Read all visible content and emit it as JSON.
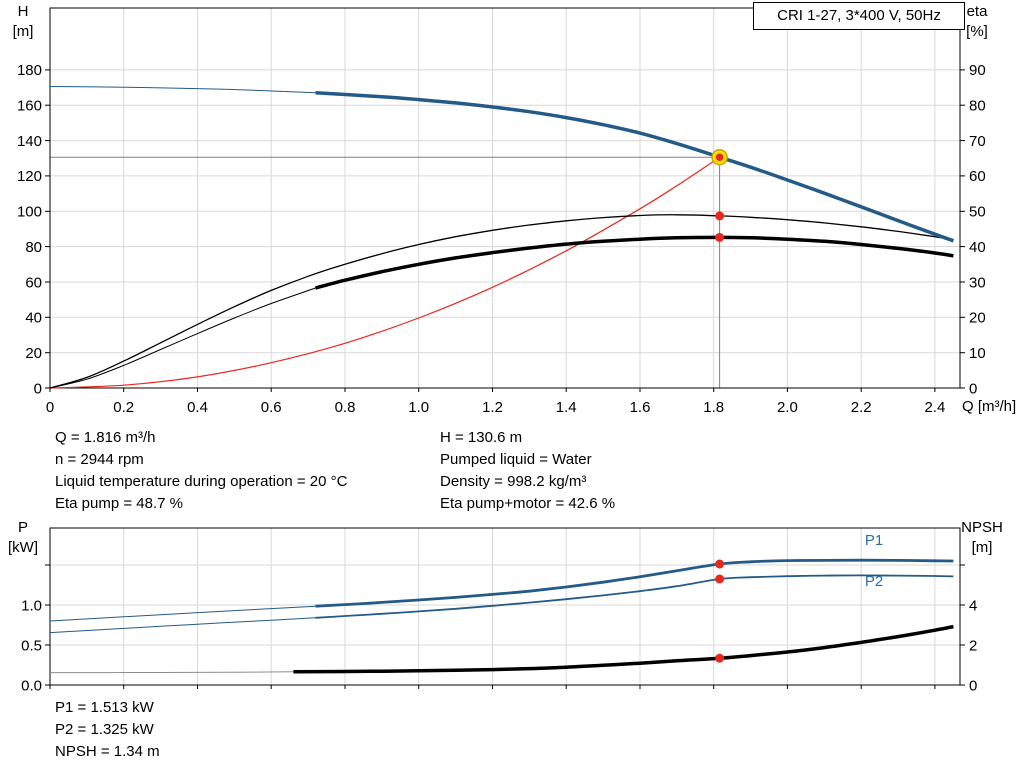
{
  "title_box": {
    "label": "CRI 1-27, 3*400 V, 50Hz"
  },
  "axis_corner_labels": {
    "top_left": [
      "H",
      "[m]"
    ],
    "top_right": [
      "eta",
      "[%]"
    ],
    "x_axis": "Q [m³/h]",
    "bottom_left": [
      "P",
      "[kW]"
    ],
    "bottom_right": [
      "NPSH",
      "[m]"
    ]
  },
  "info": {
    "top_left": [
      "Q = 1.816 m³/h",
      "n = 2944 rpm",
      "Liquid temperature during operation = 20 °C",
      "Eta pump = 48.7 %"
    ],
    "top_right": [
      "H = 130.6 m",
      "Pumped liquid = Water",
      "Density = 998.2 kg/m³",
      "Eta pump+motor = 42.6 %"
    ],
    "bottom": [
      "P1 = 1.513 kW",
      "P2 = 1.325 kW",
      "NPSH = 1.34 m"
    ]
  },
  "colors": {
    "curve_blue": "#245a87",
    "label_blue": "#2e6da4",
    "red": "#e8281e",
    "black": "#000000",
    "grid": "#d8d8d8",
    "crosshair": "#808080",
    "yellow": "#ffe100",
    "yellow_edge": "#c8a400",
    "npsh_thin_gray": "#8c8c8c",
    "axis": "#000000"
  },
  "chart_data": [
    {
      "id": "qh-eta-curve",
      "type": "line",
      "title": "CRI 1-27, 3*400 V, 50Hz",
      "x": {
        "label": "Q [m³/h]",
        "min": 0,
        "max": 2.468,
        "ticks": [
          0,
          0.2,
          0.4,
          0.6,
          0.8,
          1,
          1.2,
          1.4,
          1.6,
          1.8,
          2,
          2.2,
          2.4
        ],
        "tick_labels": [
          "0",
          "0.2",
          "0.4",
          "0.6",
          "0.8",
          "1.0",
          "1.2",
          "1.4",
          "1.6",
          "1.8",
          "2.0",
          "2.2",
          "2.4"
        ]
      },
      "y_left": {
        "label": "H [m]",
        "min": 0,
        "max": 215,
        "ticks": [
          0,
          20,
          40,
          60,
          80,
          100,
          120,
          140,
          160,
          180
        ],
        "tick_labels": [
          "0",
          "20",
          "40",
          "60",
          "80",
          "100",
          "120",
          "140",
          "160",
          "180"
        ]
      },
      "y_right": {
        "label": "eta [%]",
        "min": 0,
        "max": 107.5,
        "ticks": [
          0,
          10,
          20,
          30,
          40,
          50,
          60,
          70,
          80,
          90
        ],
        "tick_labels": [
          "0",
          "10",
          "20",
          "30",
          "40",
          "50",
          "60",
          "70",
          "80",
          "90"
        ]
      },
      "operating_point": {
        "Q": 1.816,
        "H": 130.6,
        "eta_pump": 48.7,
        "eta_pump_motor": 42.6
      },
      "crosshair": {
        "x": 1.816,
        "y": 130.6,
        "axis": "left"
      },
      "series": [
        {
          "name": "system-curve",
          "axis": "left",
          "color": "#e8281e",
          "width": 1.2,
          "points": [
            [
              0,
              0
            ],
            [
              0.2,
              1.6
            ],
            [
              0.4,
              6.3
            ],
            [
              0.6,
              14.3
            ],
            [
              0.8,
              25.3
            ],
            [
              1,
              39.6
            ],
            [
              1.2,
              57
            ],
            [
              1.4,
              77.6
            ],
            [
              1.6,
              101.4
            ],
            [
              1.7,
              114.4
            ],
            [
              1.816,
              130.6
            ]
          ]
        },
        {
          "name": "eta-pump-motor-curve-thin",
          "axis": "right",
          "color": "#000000",
          "width": 1,
          "points": [
            [
              0,
              0
            ],
            [
              0.1,
              2.5
            ],
            [
              0.2,
              6.4
            ],
            [
              0.3,
              10.9
            ],
            [
              0.4,
              15.4
            ],
            [
              0.5,
              19.8
            ],
            [
              0.6,
              23.9
            ],
            [
              0.72,
              28.3
            ]
          ]
        },
        {
          "name": "eta-pump-curve",
          "axis": "right",
          "color": "#000000",
          "width": 1.3,
          "points": [
            [
              0,
              0
            ],
            [
              0.1,
              3
            ],
            [
              0.2,
              7.6
            ],
            [
              0.3,
              12.8
            ],
            [
              0.4,
              18
            ],
            [
              0.5,
              23
            ],
            [
              0.6,
              27.6
            ],
            [
              0.7,
              31.6
            ],
            [
              0.8,
              35
            ],
            [
              0.9,
              38
            ],
            [
              1,
              40.6
            ],
            [
              1.1,
              42.8
            ],
            [
              1.2,
              44.6
            ],
            [
              1.3,
              46.1
            ],
            [
              1.4,
              47.3
            ],
            [
              1.5,
              48.2
            ],
            [
              1.6,
              48.8
            ],
            [
              1.7,
              49
            ],
            [
              1.816,
              48.7
            ],
            [
              1.9,
              48.3
            ],
            [
              2,
              47.6
            ],
            [
              2.1,
              46.7
            ],
            [
              2.2,
              45.6
            ],
            [
              2.3,
              44.3
            ],
            [
              2.4,
              42.8
            ],
            [
              2.45,
              42
            ]
          ]
        },
        {
          "name": "eta-pump-motor-curve",
          "axis": "right",
          "color": "#000000",
          "width": 3.5,
          "points": [
            [
              0.72,
              28.3
            ],
            [
              0.8,
              30.5
            ],
            [
              0.9,
              32.9
            ],
            [
              1,
              35
            ],
            [
              1.1,
              36.8
            ],
            [
              1.2,
              38.3
            ],
            [
              1.3,
              39.6
            ],
            [
              1.4,
              40.7
            ],
            [
              1.5,
              41.5
            ],
            [
              1.6,
              42.1
            ],
            [
              1.7,
              42.5
            ],
            [
              1.816,
              42.6
            ],
            [
              1.9,
              42.5
            ],
            [
              2,
              42.1
            ],
            [
              2.1,
              41.5
            ],
            [
              2.2,
              40.6
            ],
            [
              2.3,
              39.5
            ],
            [
              2.4,
              38.2
            ],
            [
              2.45,
              37.4
            ]
          ]
        },
        {
          "name": "pump-curve-thin",
          "axis": "left",
          "color": "#245a87",
          "width": 1,
          "points": [
            [
              0,
              170.6
            ],
            [
              0.2,
              170.2
            ],
            [
              0.4,
              169.4
            ],
            [
              0.55,
              168.5
            ],
            [
              0.72,
              167
            ]
          ]
        },
        {
          "name": "pump-curve",
          "axis": "left",
          "color": "#245a87",
          "width": 3.5,
          "points": [
            [
              0.72,
              167
            ],
            [
              0.9,
              164.8
            ],
            [
              1,
              163.2
            ],
            [
              1.1,
              161.3
            ],
            [
              1.2,
              159
            ],
            [
              1.3,
              156.3
            ],
            [
              1.4,
              153
            ],
            [
              1.5,
              149
            ],
            [
              1.6,
              144.2
            ],
            [
              1.7,
              138.3
            ],
            [
              1.816,
              130.6
            ],
            [
              1.9,
              124.9
            ],
            [
              2,
              117.7
            ],
            [
              2.1,
              110.2
            ],
            [
              2.2,
              102.5
            ],
            [
              2.3,
              94.7
            ],
            [
              2.4,
              87
            ],
            [
              2.45,
              83.3
            ]
          ]
        }
      ],
      "markers": [
        {
          "name": "eta-pump-point",
          "type": "dot",
          "x": 1.816,
          "y": 48.7,
          "axis": "right"
        },
        {
          "name": "eta-pump-motor-point",
          "type": "dot",
          "x": 1.816,
          "y": 42.6,
          "axis": "right"
        },
        {
          "name": "duty-point-marker",
          "type": "duty-point",
          "x": 1.816,
          "y": 130.6,
          "axis": "left"
        }
      ]
    },
    {
      "id": "power-npsh-curve",
      "type": "line",
      "title": "",
      "x": {
        "label": "",
        "min": 0,
        "max": 2.468,
        "ticks": [
          0,
          0.2,
          0.4,
          0.6,
          0.8,
          1,
          1.2,
          1.4,
          1.6,
          1.8,
          2,
          2.2,
          2.4
        ],
        "tick_labels": []
      },
      "y_left": {
        "label": "P [kW]",
        "min": 0,
        "max": 1.9625,
        "ticks": [
          0,
          0.5,
          1,
          1.5
        ],
        "tick_labels": [
          "0.0",
          "0.5",
          "1.0",
          ""
        ]
      },
      "y_right": {
        "label": "NPSH [m]",
        "min": 0,
        "max": 7.85,
        "ticks": [
          0,
          2,
          4,
          6
        ],
        "tick_labels": [
          "0",
          "2",
          "4",
          ""
        ]
      },
      "operating_point": {
        "Q": 1.816,
        "P1": 1.513,
        "P2": 1.325,
        "NPSH": 1.34
      },
      "series": [
        {
          "name": "npsh-curve-thin",
          "axis": "right",
          "color": "#8c8c8c",
          "width": 1,
          "points": [
            [
              0,
              0.62
            ],
            [
              0.3,
              0.625
            ],
            [
              0.5,
              0.64
            ],
            [
              0.66,
              0.66
            ]
          ]
        },
        {
          "name": "p2-curve-thin",
          "axis": "left",
          "color": "#245a87",
          "width": 1,
          "points": [
            [
              0,
              0.655
            ],
            [
              0.2,
              0.708
            ],
            [
              0.4,
              0.76
            ],
            [
              0.6,
              0.81
            ],
            [
              0.72,
              0.84
            ]
          ]
        },
        {
          "name": "p1-curve-thin",
          "axis": "left",
          "color": "#245a87",
          "width": 1,
          "points": [
            [
              0,
              0.8
            ],
            [
              0.2,
              0.853
            ],
            [
              0.4,
              0.905
            ],
            [
              0.6,
              0.955
            ],
            [
              0.72,
              0.985
            ]
          ]
        },
        {
          "name": "p2-curve",
          "axis": "left",
          "color": "#245a87",
          "width": 1.8,
          "points": [
            [
              0.72,
              0.84
            ],
            [
              0.8,
              0.862
            ],
            [
              0.9,
              0.89
            ],
            [
              1,
              0.92
            ],
            [
              1.1,
              0.953
            ],
            [
              1.2,
              0.99
            ],
            [
              1.3,
              1.03
            ],
            [
              1.4,
              1.073
            ],
            [
              1.5,
              1.12
            ],
            [
              1.6,
              1.173
            ],
            [
              1.7,
              1.235
            ],
            [
              1.816,
              1.325
            ],
            [
              1.9,
              1.347
            ],
            [
              2,
              1.36
            ],
            [
              2.1,
              1.367
            ],
            [
              2.2,
              1.37
            ],
            [
              2.3,
              1.368
            ],
            [
              2.4,
              1.362
            ],
            [
              2.45,
              1.358
            ]
          ]
        },
        {
          "name": "p1-curve",
          "axis": "left",
          "color": "#245a87",
          "width": 2.8,
          "points": [
            [
              0.72,
              0.985
            ],
            [
              0.8,
              1.005
            ],
            [
              0.9,
              1.032
            ],
            [
              1,
              1.062
            ],
            [
              1.1,
              1.095
            ],
            [
              1.2,
              1.132
            ],
            [
              1.3,
              1.173
            ],
            [
              1.4,
              1.225
            ],
            [
              1.5,
              1.285
            ],
            [
              1.6,
              1.352
            ],
            [
              1.7,
              1.428
            ],
            [
              1.816,
              1.513
            ],
            [
              1.9,
              1.54
            ],
            [
              2,
              1.555
            ],
            [
              2.1,
              1.558
            ],
            [
              2.2,
              1.56
            ],
            [
              2.3,
              1.558
            ],
            [
              2.4,
              1.553
            ],
            [
              2.45,
              1.55
            ]
          ]
        },
        {
          "name": "npsh-curve",
          "axis": "right",
          "color": "#000000",
          "width": 3.5,
          "points": [
            [
              0.66,
              0.66
            ],
            [
              0.8,
              0.675
            ],
            [
              0.9,
              0.69
            ],
            [
              1,
              0.71
            ],
            [
              1.1,
              0.735
            ],
            [
              1.2,
              0.77
            ],
            [
              1.3,
              0.82
            ],
            [
              1.4,
              0.89
            ],
            [
              1.5,
              0.985
            ],
            [
              1.6,
              1.09
            ],
            [
              1.7,
              1.21
            ],
            [
              1.816,
              1.34
            ],
            [
              1.9,
              1.47
            ],
            [
              2,
              1.65
            ],
            [
              2.1,
              1.87
            ],
            [
              2.2,
              2.13
            ],
            [
              2.3,
              2.42
            ],
            [
              2.4,
              2.74
            ],
            [
              2.45,
              2.92
            ]
          ]
        }
      ],
      "markers": [
        {
          "name": "p1-point",
          "type": "dot",
          "x": 1.816,
          "y": 1.513,
          "axis": "left"
        },
        {
          "name": "p2-point",
          "type": "dot",
          "x": 1.816,
          "y": 1.325,
          "axis": "left"
        },
        {
          "name": "npsh-point",
          "type": "dot",
          "x": 1.816,
          "y": 1.34,
          "axis": "right"
        }
      ],
      "labels": [
        {
          "name": "p1-curve-label",
          "text": "P1",
          "x": 2.21,
          "y": 1.75,
          "axis": "left"
        },
        {
          "name": "p2-curve-label",
          "text": "P2",
          "x": 2.21,
          "y": 1.24,
          "axis": "left"
        }
      ]
    }
  ]
}
